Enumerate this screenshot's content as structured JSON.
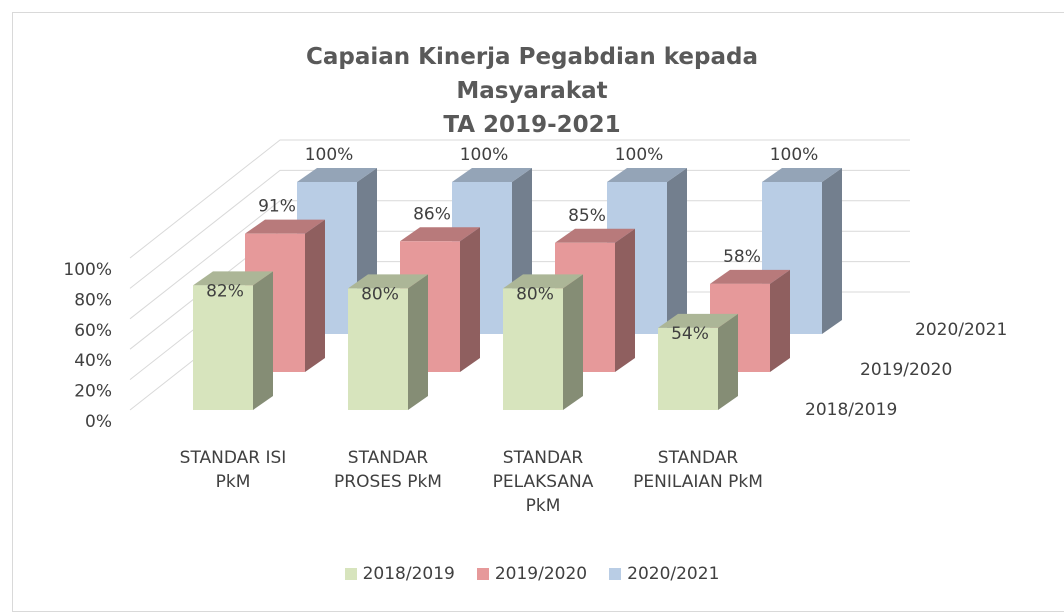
{
  "chart_data": {
    "type": "bar3d",
    "title": "Capaian Kinerja Pegabdian kepada Masyarakat\nTA 2019-2021",
    "categories": [
      "STANDAR ISI PkM",
      "STANDAR PROSES PkM",
      "STANDAR PELAKSANA PkM",
      "STANDAR PENILAIAN PkM"
    ],
    "series": [
      {
        "name": "2018/2019",
        "color": "#d7e4bd",
        "values": [
          82,
          80,
          80,
          54
        ],
        "value_labels": [
          "82%",
          "80%",
          "80%",
          "54%"
        ]
      },
      {
        "name": "2019/2020",
        "color": "#e6999a",
        "values": [
          91,
          86,
          85,
          58
        ],
        "value_labels": [
          "91%",
          "86%",
          "85%",
          "58%"
        ]
      },
      {
        "name": "2020/2021",
        "color": "#b9cde5",
        "values": [
          100,
          100,
          100,
          100
        ],
        "value_labels": [
          "100%",
          "100%",
          "100%",
          "100%"
        ]
      }
    ],
    "ylim": [
      0,
      100
    ],
    "yticks": [
      {
        "value": 0,
        "label": "0%"
      },
      {
        "value": 20,
        "label": "20%"
      },
      {
        "value": 40,
        "label": "40%"
      },
      {
        "value": 60,
        "label": "60%"
      },
      {
        "value": 80,
        "label": "80%"
      },
      {
        "value": 100,
        "label": "100%"
      }
    ],
    "grid": true,
    "legend": "bottom"
  }
}
